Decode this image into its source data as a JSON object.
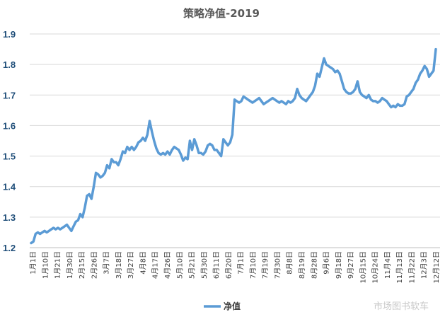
{
  "chart_data": {
    "type": "line",
    "title": "策略净值-2019",
    "xlabel": "",
    "ylabel": "",
    "ylim": [
      1.2,
      1.9
    ],
    "yticks": [
      "1.2",
      "1.3",
      "1.4",
      "1.5",
      "1.6",
      "1.7",
      "1.8",
      "1.9"
    ],
    "grid": true,
    "legend": "bottom",
    "color": "#5b9bd5",
    "x_tick_labels": [
      "1月1日",
      "1月10日",
      "1月21日",
      "1月30日",
      "2月15日",
      "2月26日",
      "3月7日",
      "3月18日",
      "3月27日",
      "4月8日",
      "4月17日",
      "4月26日",
      "5月10日",
      "5月21日",
      "5月30日",
      "6月11日",
      "6月20日",
      "7月1日",
      "7月10日",
      "7月19日",
      "7月30日",
      "8月8日",
      "8月19日",
      "8月28日",
      "9月6日",
      "9月18日",
      "9月27日",
      "10月15日",
      "10月24日",
      "11月4日",
      "11月13日",
      "11月22日",
      "12月3日",
      "12月12日"
    ],
    "series": [
      {
        "name": "净值",
        "values": [
          1.215,
          1.22,
          1.245,
          1.25,
          1.245,
          1.25,
          1.255,
          1.25,
          1.255,
          1.26,
          1.265,
          1.26,
          1.265,
          1.26,
          1.265,
          1.27,
          1.275,
          1.265,
          1.255,
          1.27,
          1.285,
          1.29,
          1.31,
          1.3,
          1.33,
          1.37,
          1.375,
          1.36,
          1.4,
          1.445,
          1.44,
          1.43,
          1.435,
          1.445,
          1.47,
          1.46,
          1.49,
          1.48,
          1.48,
          1.47,
          1.49,
          1.515,
          1.51,
          1.53,
          1.52,
          1.53,
          1.52,
          1.53,
          1.545,
          1.55,
          1.56,
          1.55,
          1.57,
          1.615,
          1.58,
          1.55,
          1.525,
          1.51,
          1.505,
          1.51,
          1.505,
          1.515,
          1.505,
          1.52,
          1.53,
          1.525,
          1.52,
          1.505,
          1.485,
          1.495,
          1.49,
          1.55,
          1.52,
          1.555,
          1.535,
          1.51,
          1.51,
          1.505,
          1.515,
          1.535,
          1.54,
          1.535,
          1.52,
          1.52,
          1.51,
          1.5,
          1.555,
          1.545,
          1.535,
          1.545,
          1.57,
          1.685,
          1.68,
          1.675,
          1.68,
          1.695,
          1.69,
          1.685,
          1.68,
          1.675,
          1.68,
          1.685,
          1.69,
          1.68,
          1.67,
          1.675,
          1.68,
          1.685,
          1.69,
          1.685,
          1.68,
          1.675,
          1.68,
          1.675,
          1.67,
          1.68,
          1.675,
          1.68,
          1.69,
          1.72,
          1.7,
          1.69,
          1.685,
          1.68,
          1.69,
          1.7,
          1.71,
          1.73,
          1.77,
          1.76,
          1.79,
          1.82,
          1.8,
          1.795,
          1.79,
          1.785,
          1.775,
          1.78,
          1.77,
          1.745,
          1.72,
          1.71,
          1.705,
          1.705,
          1.71,
          1.72,
          1.745,
          1.71,
          1.7,
          1.695,
          1.69,
          1.7,
          1.685,
          1.68,
          1.68,
          1.675,
          1.68,
          1.69,
          1.685,
          1.68,
          1.67,
          1.66,
          1.665,
          1.66,
          1.67,
          1.665,
          1.665,
          1.67,
          1.695,
          1.7,
          1.71,
          1.72,
          1.74,
          1.75,
          1.77,
          1.78,
          1.795,
          1.785,
          1.76,
          1.77,
          1.78,
          1.85
        ]
      }
    ]
  },
  "legend_label": "净值",
  "watermark": "市场图书软车"
}
